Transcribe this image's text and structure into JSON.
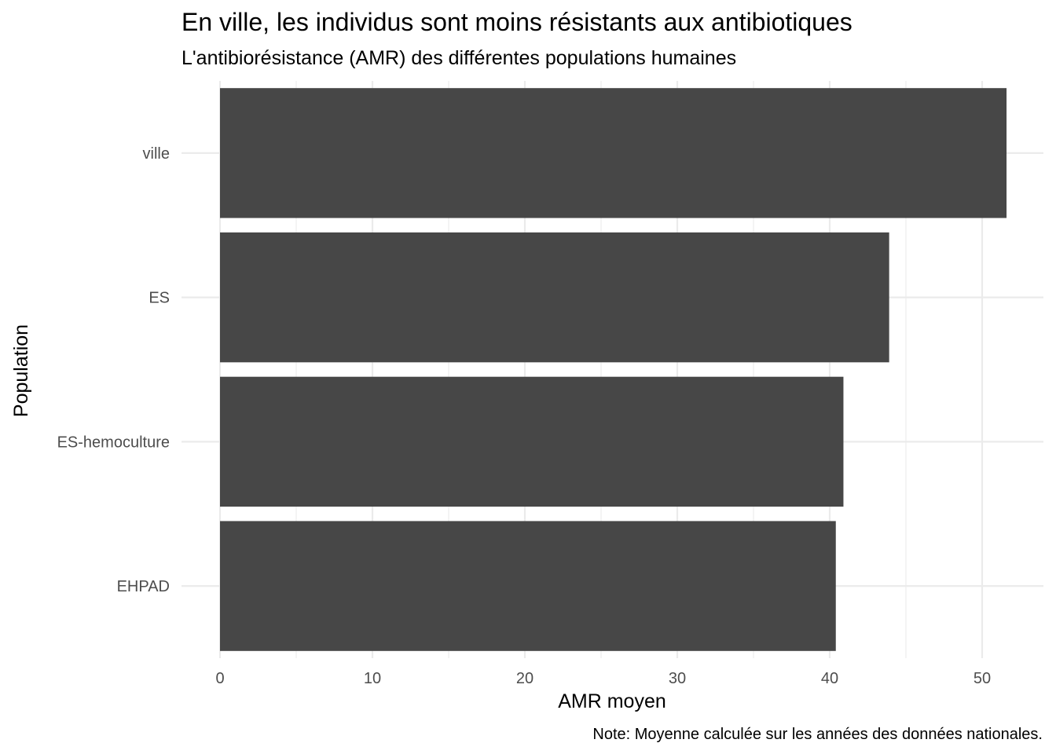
{
  "chart_data": {
    "type": "bar",
    "orientation": "horizontal",
    "title": "En ville, les individus sont moins résistants aux antibiotiques",
    "subtitle": "L'antibiorésistance (AMR) des différentes populations humaines",
    "xlabel": "AMR moyen",
    "ylabel": "Population",
    "caption": "Note: Moyenne calculée sur les années des données nationales.",
    "categories": [
      "ville",
      "ES",
      "ES-hemoculture",
      "EHPAD"
    ],
    "values": [
      51.6,
      43.9,
      40.9,
      40.4
    ],
    "xlim": [
      0,
      54
    ],
    "x_ticks": [
      0,
      10,
      20,
      30,
      40,
      50
    ],
    "grid": true,
    "bar_color": "#474747",
    "grid_color": "#ebebeb"
  }
}
